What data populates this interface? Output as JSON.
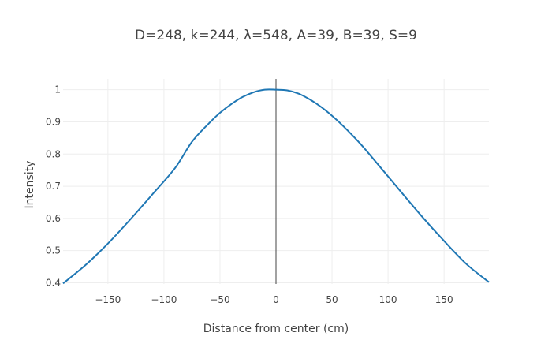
{
  "chart_data": {
    "type": "line",
    "title": "D=248, k=244, λ=548, A=39, B=39, S=9",
    "xlabel": "Distance from center (cm)",
    "ylabel": "Intensity",
    "xlim": [
      -190,
      190
    ],
    "ylim": [
      0.3963,
      1.0335
    ],
    "x_ticks": [
      -150,
      -100,
      -50,
      0,
      50,
      100,
      150
    ],
    "x_tick_labels": [
      "−150",
      "−100",
      "−50",
      "0",
      "50",
      "100",
      "150"
    ],
    "y_ticks": [
      0.4,
      0.5,
      0.6,
      0.7,
      0.8,
      0.9,
      1
    ],
    "y_tick_labels": [
      "0.4",
      "0.5",
      "0.6",
      "0.7",
      "0.8",
      "0.9",
      "1"
    ],
    "grid": true,
    "zeroline_x": true,
    "series": [
      {
        "name": "Intensity",
        "color": "#1f77b4",
        "x": [
          -190,
          -170,
          -150,
          -130,
          -110,
          -90,
          -75,
          -60,
          -50,
          -40,
          -30,
          -20,
          -10,
          0,
          10,
          20,
          30,
          40,
          50,
          60,
          75,
          90,
          110,
          130,
          150,
          170,
          190
        ],
        "y": [
          0.398,
          0.455,
          0.522,
          0.597,
          0.676,
          0.757,
          0.838,
          0.895,
          0.928,
          0.955,
          0.977,
          0.992,
          1.0,
          1.0,
          0.998,
          0.988,
          0.97,
          0.947,
          0.919,
          0.887,
          0.833,
          0.772,
          0.689,
          0.607,
          0.53,
          0.458,
          0.402
        ]
      }
    ]
  }
}
